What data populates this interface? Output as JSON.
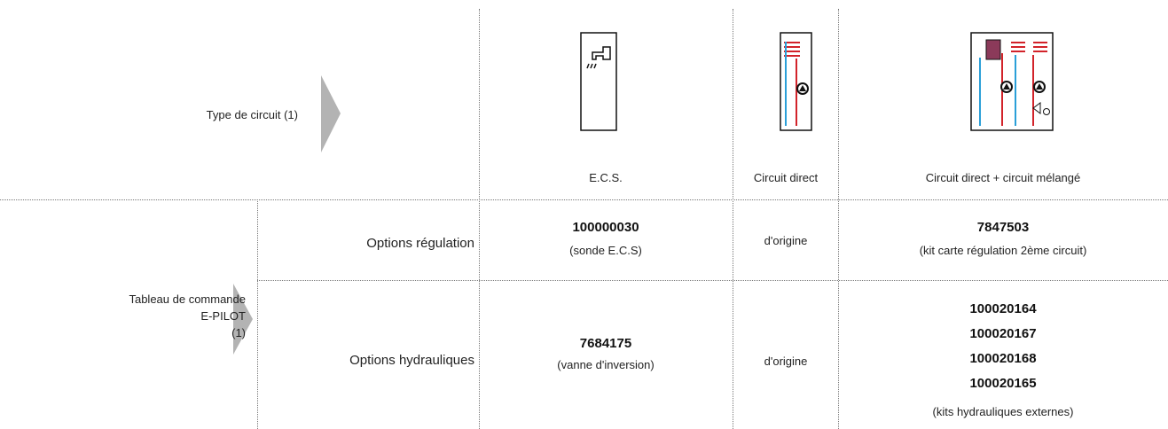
{
  "header_row": {
    "label": "Type de circuit (1)",
    "columns": [
      {
        "label": "E.C.S."
      },
      {
        "label": "Circuit direct"
      },
      {
        "label": "Circuit direct + circuit mélangé"
      }
    ]
  },
  "section": {
    "label_lines": [
      "Tableau de commande",
      "E-PILOT",
      "(1)"
    ]
  },
  "rows": [
    {
      "label": "Options régulation",
      "cells": [
        {
          "codes": [
            "100000030"
          ],
          "note": "(sonde E.C.S)"
        },
        {
          "text": "d'origine"
        },
        {
          "codes": [
            "7847503"
          ],
          "note": "(kit carte régulation 2ème circuit)"
        }
      ]
    },
    {
      "label": "Options hydrauliques",
      "cells": [
        {
          "codes": [
            "7684175"
          ],
          "note": "(vanne d'inversion)"
        },
        {
          "text": "d'origine"
        },
        {
          "codes": [
            "100020164",
            "100020167",
            "100020168",
            "100020165"
          ],
          "note": "(kits hydrauliques externes)"
        }
      ]
    }
  ]
}
